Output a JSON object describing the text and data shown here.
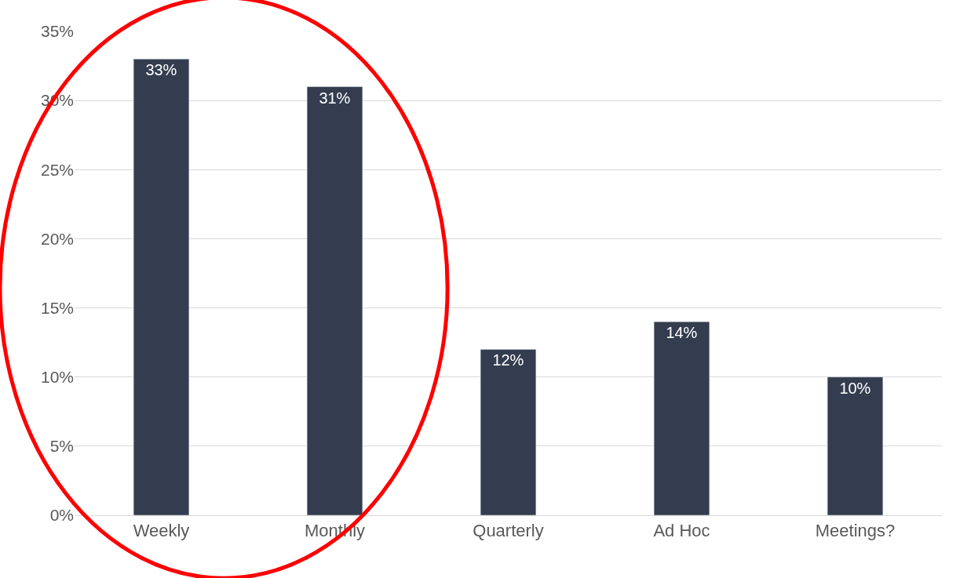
{
  "chart_data": {
    "type": "bar",
    "categories": [
      "Weekly",
      "Monthly",
      "Quarterly",
      "Ad Hoc",
      "Meetings?"
    ],
    "values": [
      33,
      31,
      12,
      14,
      10
    ],
    "value_labels": [
      "33%",
      "31%",
      "12%",
      "14%",
      "10%"
    ],
    "color": "#333d4f",
    "ylim": [
      0,
      35
    ],
    "yticks": [
      {
        "value": 0,
        "label": "0%"
      },
      {
        "value": 5,
        "label": "5%"
      },
      {
        "value": 10,
        "label": "10%"
      },
      {
        "value": 15,
        "label": "15%"
      },
      {
        "value": 20,
        "label": "20%"
      },
      {
        "value": 25,
        "label": "25%"
      },
      {
        "value": 30,
        "label": "30%"
      },
      {
        "value": 35,
        "label": "35%"
      }
    ],
    "grid": "y",
    "legend": false
  }
}
